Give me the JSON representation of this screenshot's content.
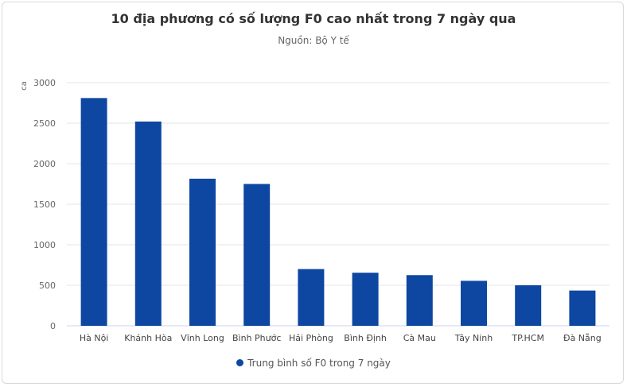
{
  "chart_data": {
    "type": "bar",
    "title": "10 địa phương có số lượng F0 cao nhất trong 7 ngày qua",
    "subtitle": "Nguồn: Bộ Y tế",
    "ylabel": "ca",
    "xlabel": "",
    "ylim": [
      0,
      3000
    ],
    "yticks": [
      0,
      500,
      1000,
      1500,
      2000,
      2500,
      3000
    ],
    "categories": [
      "Hà Nội",
      "Khánh Hòa",
      "Vĩnh Long",
      "Bình Phước",
      "Hải Phòng",
      "Bình Định",
      "Cà Mau",
      "Tây Ninh",
      "TP.HCM",
      "Đà Nẵng"
    ],
    "series": [
      {
        "name": "Trung bình số F0 trong 7 ngày",
        "color": "#0d47a1",
        "values": [
          2810,
          2520,
          1815,
          1750,
          700,
          655,
          625,
          555,
          500,
          435
        ]
      }
    ],
    "grid": true,
    "legend_position": "bottom"
  }
}
